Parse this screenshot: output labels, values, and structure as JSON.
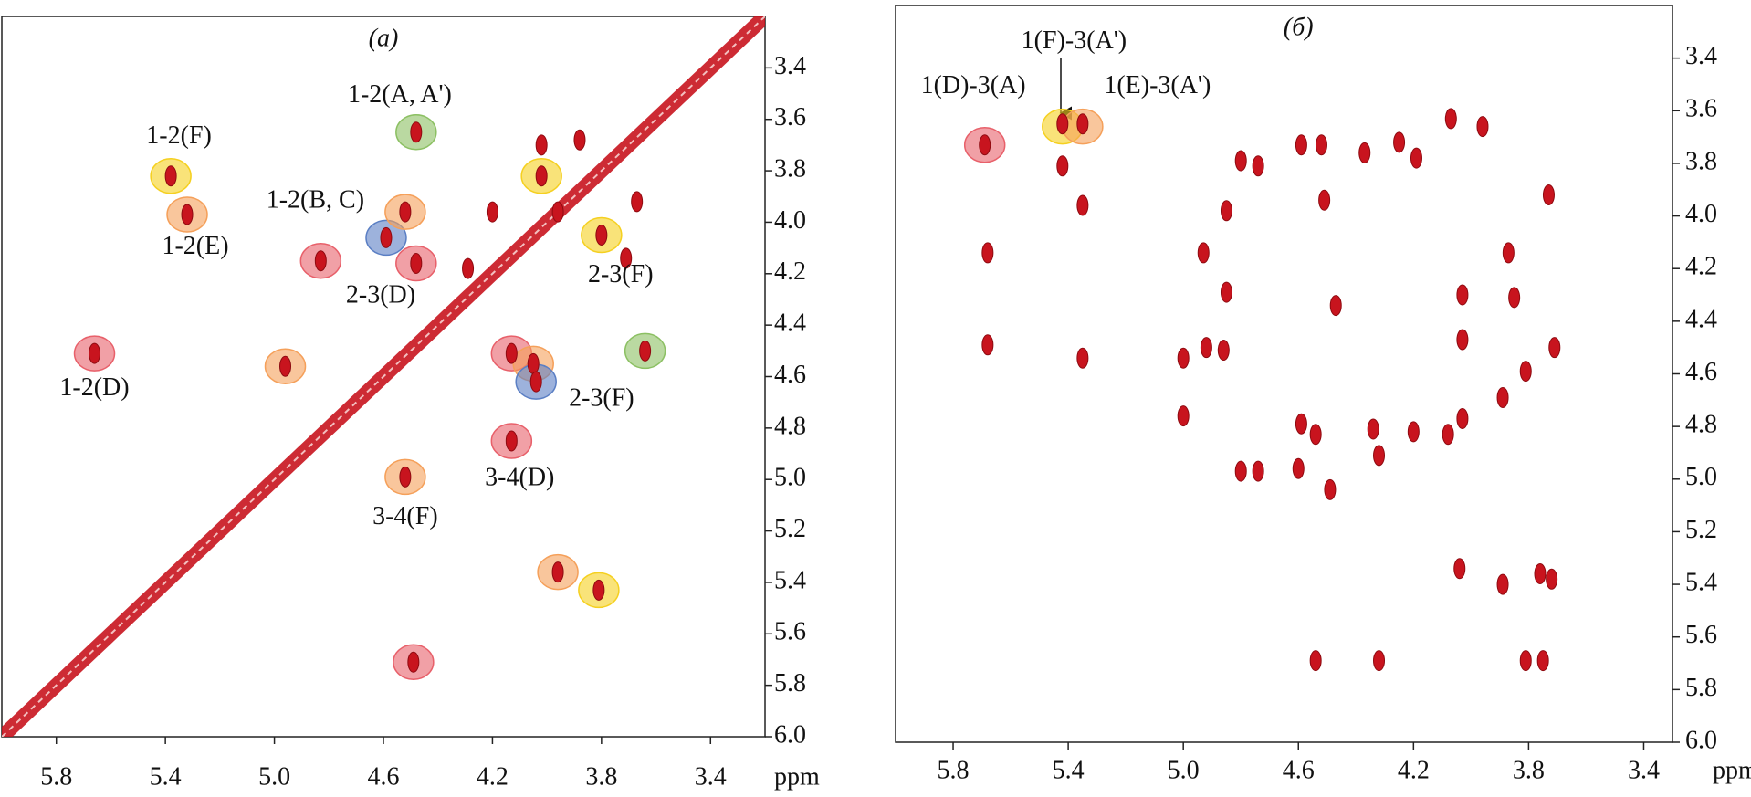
{
  "chart_data": [
    {
      "type": "scatter",
      "title": "(a)",
      "x_label": "ppm",
      "diagonal": true,
      "peak_color": "#c8141e",
      "xlim": [
        6.0,
        3.2
      ],
      "ylim": [
        3.2,
        6.0
      ],
      "xticks": [
        5.8,
        5.4,
        {
          "value": 5,
          "label": "5.0"
        },
        4.6,
        4.2,
        3.8,
        3.4
      ],
      "yticks": [
        3.4,
        3.6,
        3.8,
        {
          "value": 4,
          "label": "4.0"
        },
        4.2,
        4.4,
        4.6,
        4.8,
        {
          "value": 5,
          "label": "5.0"
        },
        5.2,
        5.4,
        5.6,
        5.8,
        {
          "value": 6,
          "label": "6.0"
        }
      ],
      "peaks": {
        "x": [
          5.38,
          5.32,
          4.48,
          4.59,
          4.52,
          4.83,
          4.48,
          4.02,
          3.8,
          5.66,
          4.96,
          4.13,
          4.05,
          4.04,
          3.64,
          4.13,
          4.52,
          3.96,
          3.81,
          4.49,
          4.02,
          3.88,
          3.96,
          3.67,
          4.2,
          4.29,
          3.71
        ],
        "y": [
          3.82,
          3.97,
          3.65,
          4.06,
          3.96,
          4.15,
          4.16,
          3.82,
          4.05,
          4.51,
          4.56,
          4.51,
          4.55,
          4.62,
          4.5,
          4.85,
          4.99,
          5.36,
          5.43,
          5.71,
          3.7,
          3.68,
          3.96,
          3.92,
          3.96,
          4.18,
          4.14
        ]
      },
      "highlights": {
        "x": [
          5.38,
          5.32,
          4.48,
          4.59,
          4.52,
          4.83,
          4.48,
          4.02,
          3.8,
          5.66,
          4.96,
          4.13,
          4.05,
          4.04,
          3.64,
          4.13,
          4.52,
          3.96,
          3.81,
          4.49
        ],
        "y": [
          3.82,
          3.97,
          3.65,
          4.06,
          3.96,
          4.15,
          4.16,
          3.82,
          4.05,
          4.51,
          4.56,
          4.51,
          4.55,
          4.62,
          4.5,
          4.85,
          4.99,
          5.36,
          5.43,
          5.71
        ],
        "colors": [
          "#f5d020",
          "#f5a05a",
          "#8cc063",
          "#5b7fc4",
          "#f5a05a",
          "#e8606a",
          "#e8606a",
          "#f5d020",
          "#f5d020",
          "#e8606a",
          "#f5a05a",
          "#e8606a",
          "#f5a05a",
          "#5b7fc4",
          "#8cc063",
          "#e8606a",
          "#f5a05a",
          "#f5a05a",
          "#f5d020",
          "#e8606a"
        ]
      },
      "annotations": [
        {
          "text": "1-2(A, A')",
          "x": 4.54,
          "y": 3.51
        },
        {
          "text": "1-2(F)",
          "x": 5.35,
          "y": 3.67
        },
        {
          "text": "1-2(B, C)",
          "x": 4.85,
          "y": 3.92
        },
        {
          "text": "1-2(E)",
          "x": 5.29,
          "y": 4.1
        },
        {
          "text": "2-3(D)",
          "x": 4.61,
          "y": 4.29
        },
        {
          "text": "2-3(F)",
          "x": 3.73,
          "y": 4.21
        },
        {
          "text": "1-2(D)",
          "x": 5.66,
          "y": 4.65
        },
        {
          "text": "2-3(F)",
          "x": 3.8,
          "y": 4.69
        },
        {
          "text": "3-4(D)",
          "x": 4.1,
          "y": 5.0
        },
        {
          "text": "3-4(F)",
          "x": 4.52,
          "y": 5.15
        }
      ]
    },
    {
      "type": "scatter",
      "title": "(б)",
      "x_label": "ppm",
      "diagonal": false,
      "peak_color": "#c8141e",
      "xlim": [
        6.0,
        3.3
      ],
      "ylim": [
        3.2,
        6.0
      ],
      "xticks": [
        5.8,
        5.4,
        {
          "value": 5,
          "label": "5.0"
        },
        4.6,
        4.2,
        3.8,
        3.4
      ],
      "yticks": [
        3.4,
        3.6,
        3.8,
        {
          "value": 4,
          "label": "4.0"
        },
        4.2,
        4.4,
        4.6,
        4.8,
        {
          "value": 5,
          "label": "5.0"
        },
        5.2,
        5.4,
        5.6,
        5.8,
        {
          "value": 6,
          "label": "6.0"
        }
      ],
      "peaks": {
        "x": [
          5.69,
          5.42,
          5.35,
          5.42,
          5.35,
          5.68,
          5.68,
          5.35,
          4.8,
          4.74,
          4.85,
          4.93,
          4.85,
          4.47,
          5.0,
          4.92,
          4.86,
          5.0,
          4.59,
          4.52,
          4.51,
          4.37,
          4.25,
          4.19,
          4.07,
          3.96,
          4.03,
          4.03,
          3.73,
          3.71,
          3.81,
          3.89,
          4.34,
          4.2,
          4.08,
          4.03,
          4.59,
          4.54,
          4.6,
          4.49,
          4.8,
          4.74,
          4.32,
          4.04,
          3.89,
          3.76,
          3.72,
          4.54,
          4.32,
          3.81,
          3.75,
          3.87,
          3.85
        ],
        "y": [
          3.73,
          3.65,
          3.65,
          3.81,
          3.96,
          4.14,
          4.49,
          4.54,
          3.79,
          3.81,
          3.98,
          4.14,
          4.29,
          4.34,
          4.54,
          4.5,
          4.51,
          4.76,
          3.73,
          3.73,
          3.94,
          3.76,
          3.72,
          3.78,
          3.63,
          3.66,
          4.3,
          4.47,
          3.92,
          4.5,
          4.59,
          4.69,
          4.81,
          4.82,
          4.83,
          4.77,
          4.79,
          4.83,
          4.96,
          5.04,
          4.97,
          4.97,
          4.91,
          5.34,
          5.4,
          5.36,
          5.38,
          5.69,
          5.69,
          5.69,
          5.69,
          4.14,
          4.31
        ]
      },
      "highlights": {
        "x": [
          5.69,
          5.42,
          5.35
        ],
        "y": [
          3.73,
          3.66,
          3.66
        ],
        "colors": [
          "#e8606a",
          "#f5d020",
          "#f5a05a"
        ]
      },
      "annotations": [
        {
          "text": "1(D)-3(A)",
          "x": 5.73,
          "y": 3.51
        },
        {
          "text": "1(F)-3(A')",
          "x": 5.38,
          "y": 3.34
        },
        {
          "text": "1(E)-3(A')",
          "x": 5.09,
          "y": 3.51
        }
      ]
    }
  ]
}
